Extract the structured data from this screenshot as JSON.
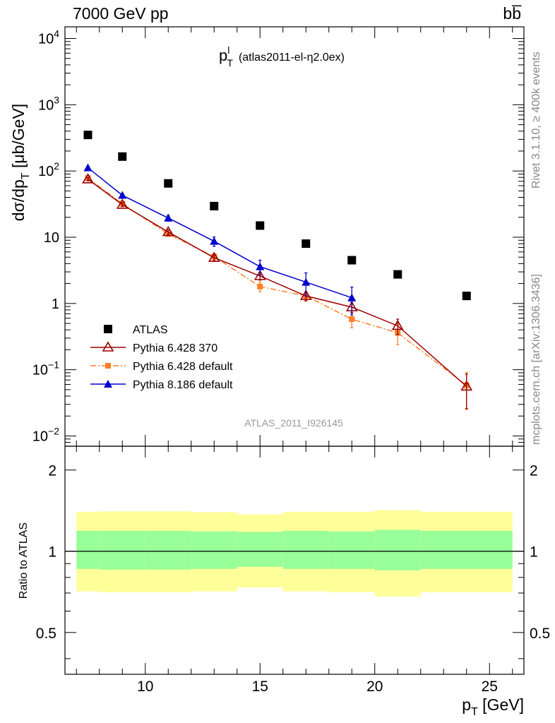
{
  "header": {
    "energy_label": "7000 GeV pp",
    "process_label": "bb̅"
  },
  "side_labels": {
    "rivet": "Rivet 3.1.10, ≥ 400k events",
    "mcplots": "mcplots.cern.ch [arXiv:1306.3436]"
  },
  "chart_data": [
    {
      "type": "scatter",
      "title": "p_T^l (atlas2011-el-η2.0ex)",
      "title_main": "p",
      "title_sub": "T",
      "title_sup": "l",
      "title_rest": "(atlas2011-el-η2.0ex)",
      "watermark": "ATLAS_2011_I926145",
      "ylabel": "dσ/dp_T [μb/GeV]",
      "ylabel_parts": {
        "main": "dσ/dp",
        "sub": "T",
        "rest": "[μb/GeV]"
      },
      "yscale": "log",
      "ylim": [
        0.007,
        15000
      ],
      "xlim": [
        6.5,
        26.5
      ],
      "ytick_labels": [
        {
          "value": 0.01,
          "base": "10",
          "exp": "−2"
        },
        {
          "value": 0.1,
          "base": "10",
          "exp": "−1"
        },
        {
          "value": 1,
          "base": "1",
          "exp": ""
        },
        {
          "value": 10,
          "base": "10",
          "exp": ""
        },
        {
          "value": 100,
          "base": "10",
          "exp": "2"
        },
        {
          "value": 1000,
          "base": "10",
          "exp": "3"
        },
        {
          "value": 10000,
          "base": "10",
          "exp": "4"
        }
      ],
      "legend_position": "bottom-left",
      "series": [
        {
          "name": "ATLAS",
          "marker": "square",
          "color": "#000000",
          "x": [
            7.5,
            9,
            11,
            13,
            15,
            17,
            19,
            21,
            24
          ],
          "y": [
            350,
            165,
            65,
            29.5,
            15,
            8,
            4.5,
            2.75,
            1.3
          ]
        },
        {
          "name": "Pythia 6.428 370",
          "marker": "open-triangle",
          "color": "#9a0000",
          "line": "solid",
          "x": [
            7.5,
            9,
            11,
            13,
            15,
            17,
            19,
            21,
            24
          ],
          "y": [
            75,
            31,
            12,
            4.9,
            2.6,
            1.3,
            0.88,
            0.46,
            0.056
          ],
          "err": [
            4,
            2,
            0.9,
            0.45,
            0.35,
            0.2,
            0.16,
            0.12,
            0.03
          ]
        },
        {
          "name": "Pythia 6.428 default",
          "marker": "small-square",
          "color": "#ff7f2a",
          "line": "dashdot",
          "x": [
            7.5,
            9,
            11,
            13,
            15,
            17,
            19,
            21,
            24
          ],
          "y": [
            78,
            32,
            11.2,
            5.1,
            1.8,
            1.3,
            0.58,
            0.36,
            0.058
          ],
          "err": [
            4,
            2,
            0.9,
            0.45,
            0.3,
            0.22,
            0.15,
            0.12,
            0.033
          ]
        },
        {
          "name": "Pythia 8.186 default",
          "marker": "triangle",
          "color": "#0000cc",
          "line": "solid",
          "x": [
            7.5,
            9,
            11,
            13,
            15,
            17,
            19
          ],
          "y": [
            112,
            43,
            19.5,
            8.7,
            3.6,
            2.1,
            1.22
          ],
          "err": [
            6,
            3,
            2,
            1.4,
            0.9,
            0.8,
            0.55
          ]
        }
      ]
    },
    {
      "type": "area",
      "ylabel": "Ratio to ATLAS",
      "xlabel": "p_T [GeV]",
      "xlabel_parts": {
        "main": "p",
        "sub": "T",
        "rest": " [GeV]"
      },
      "xlim": [
        6.5,
        26.5
      ],
      "ylim": [
        0.35,
        2.45
      ],
      "yscale": "log",
      "xtick_labels": [
        "10",
        "15",
        "20",
        "25"
      ],
      "ytick_labels": [
        "0.5",
        "1",
        "2"
      ],
      "reference_line": 1,
      "bands": {
        "bin_edges": [
          7,
          8,
          10,
          12,
          14,
          16,
          18,
          20,
          22,
          26
        ],
        "outer_color": "#ffff99",
        "inner_color": "#99ff99",
        "outer_low": [
          0.71,
          0.705,
          0.705,
          0.71,
          0.735,
          0.71,
          0.705,
          0.68,
          0.705
        ],
        "outer_high": [
          1.4,
          1.405,
          1.405,
          1.395,
          1.37,
          1.4,
          1.4,
          1.42,
          1.4
        ],
        "inner_low": [
          0.86,
          0.855,
          0.855,
          0.86,
          0.875,
          0.86,
          0.86,
          0.85,
          0.86
        ],
        "inner_high": [
          1.19,
          1.19,
          1.19,
          1.185,
          1.18,
          1.19,
          1.185,
          1.2,
          1.19
        ]
      }
    }
  ]
}
